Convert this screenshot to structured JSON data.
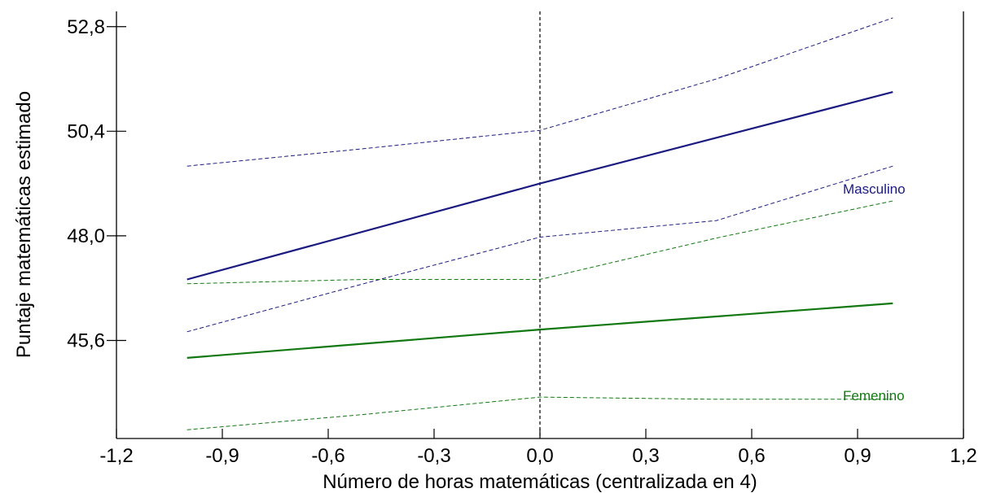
{
  "chart_data": {
    "type": "line",
    "xlabel": "Número de horas matemáticas (centralizada en 4)",
    "ylabel": "Puntaje matemáticas estimado",
    "xlim": [
      -1.2,
      1.2
    ],
    "ylim": [
      43.35,
      53.15
    ],
    "x_ticks": [
      -1.2,
      -0.9,
      -0.6,
      -0.3,
      0.0,
      0.3,
      0.6,
      0.9,
      1.2
    ],
    "x_tick_labels": [
      "-1,2",
      "-0,9",
      "-0,6",
      "-0,3",
      "0,0",
      "0,3",
      "0,6",
      "0,9",
      "1,2"
    ],
    "y_ticks": [
      45.6,
      48.0,
      50.4,
      52.8
    ],
    "y_tick_labels": [
      "45,6",
      "48,0",
      "50,4",
      "52,8"
    ],
    "reference_line_x": 0.0,
    "grid": false,
    "series": [
      {
        "name": "Masculino",
        "color": "#1a1a80",
        "style": "solid",
        "x": [
          -1.0,
          0.0,
          1.0
        ],
        "y": [
          47.0,
          49.2,
          51.3
        ]
      },
      {
        "color": "#1a1a80",
        "style": "dashed",
        "x": [
          -1.0,
          -0.5,
          0.0,
          0.5,
          1.0
        ],
        "y": [
          49.6,
          50.0,
          50.42,
          51.6,
          53.0
        ]
      },
      {
        "color": "#1a1a80",
        "style": "dashed",
        "x": [
          -1.0,
          -0.5,
          0.0,
          0.5,
          1.0
        ],
        "y": [
          45.8,
          46.9,
          47.97,
          48.35,
          49.6
        ]
      },
      {
        "name": "Femenino",
        "color": "#127812",
        "style": "solid",
        "x": [
          -1.0,
          0.0,
          1.0
        ],
        "y": [
          45.2,
          45.85,
          46.45
        ]
      },
      {
        "color": "#127812",
        "style": "dashed",
        "x": [
          -1.0,
          -0.5,
          0.0,
          0.5,
          1.0
        ],
        "y": [
          46.9,
          47.0,
          47.0,
          47.95,
          48.8
        ]
      },
      {
        "color": "#127812",
        "style": "dashed",
        "x": [
          -1.0,
          -0.5,
          0.0,
          0.5,
          1.0
        ],
        "y": [
          43.55,
          43.9,
          44.3,
          44.25,
          44.25
        ]
      }
    ]
  }
}
